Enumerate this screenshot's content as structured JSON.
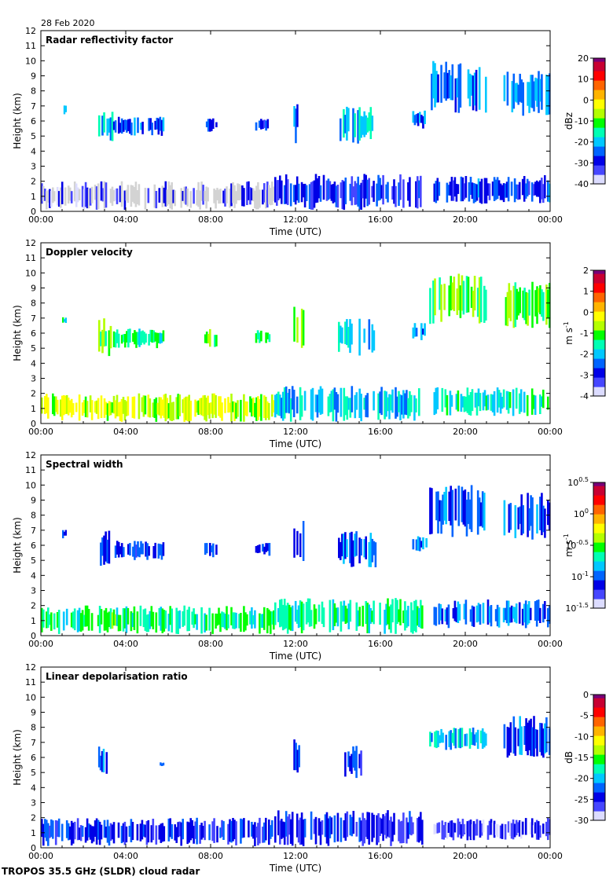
{
  "date": "28 Feb 2020",
  "footer": "TROPOS 35.5 GHz (SLDR) cloud radar",
  "colors": {
    "light": "#d3d3d3",
    "jet": [
      "#dcdcff",
      "#4646ff",
      "#0000e6",
      "#0064ff",
      "#00c8ff",
      "#00ffb4",
      "#00ff00",
      "#b4ff00",
      "#ffff00",
      "#ffb400",
      "#ff6400",
      "#ff0000",
      "#c80032",
      "#780078"
    ]
  },
  "chart_data": [
    {
      "type": "heatmap",
      "title": "Radar reflectivity factor",
      "xlabel": "Time (UTC)",
      "ylabel": "Height (km)",
      "xlim": [
        0,
        24
      ],
      "ylim": [
        0,
        12
      ],
      "xticks": [
        "00:00",
        "04:00",
        "08:00",
        "12:00",
        "16:00",
        "20:00",
        "00:00"
      ],
      "yticks": [
        "0",
        "1",
        "2",
        "3",
        "4",
        "5",
        "6",
        "7",
        "8",
        "9",
        "10",
        "11",
        "12"
      ],
      "colorbar": {
        "label": "dBz",
        "min": -40,
        "max": 20,
        "ticks": [
          "20",
          "10",
          "0",
          "-10",
          "-20",
          "-30",
          "-40"
        ]
      },
      "features": [
        {
          "t0": 1.0,
          "t1": 1.2,
          "h0": 6.4,
          "h1": 7.1,
          "v": 0.3
        },
        {
          "t0": 2.7,
          "t1": 3.4,
          "h0": 4.4,
          "h1": 7.0,
          "v": 0.35
        },
        {
          "t0": 3.4,
          "t1": 5.8,
          "h0": 5.0,
          "h1": 6.3,
          "v": 0.25
        },
        {
          "t0": 7.7,
          "t1": 8.3,
          "h0": 5.2,
          "h1": 6.3,
          "v": 0.2
        },
        {
          "t0": 10.1,
          "t1": 10.8,
          "h0": 5.3,
          "h1": 6.2,
          "v": 0.22
        },
        {
          "t0": 11.9,
          "t1": 12.4,
          "h0": 4.5,
          "h1": 8.0,
          "v": 0.25
        },
        {
          "t0": 14.0,
          "t1": 15.8,
          "h0": 4.5,
          "h1": 7.0,
          "v": 0.32
        },
        {
          "t0": 17.5,
          "t1": 18.2,
          "h0": 5.5,
          "h1": 6.7,
          "v": 0.28
        },
        {
          "t0": 18.3,
          "t1": 21.0,
          "h0": 6.5,
          "h1": 10.0,
          "v": 0.3
        },
        {
          "t0": 21.8,
          "t1": 24.0,
          "h0": 6.3,
          "h1": 9.5,
          "v": 0.3
        },
        {
          "t0": 0.0,
          "t1": 11.0,
          "h0": 0.1,
          "h1": 2.0,
          "v": 0.12
        },
        {
          "t0": 11.0,
          "t1": 18.0,
          "h0": 0.1,
          "h1": 2.5,
          "v": 0.2
        },
        {
          "t0": 18.5,
          "t1": 24.0,
          "h0": 0.5,
          "h1": 2.4,
          "v": 0.22
        }
      ]
    },
    {
      "type": "heatmap",
      "title": "Doppler velocity",
      "xlabel": "Time (UTC)",
      "ylabel": "Height (km)",
      "xlim": [
        0,
        24
      ],
      "ylim": [
        0,
        12
      ],
      "xticks": [
        "00:00",
        "04:00",
        "08:00",
        "12:00",
        "16:00",
        "20:00",
        "00:00"
      ],
      "yticks": [
        "0",
        "1",
        "2",
        "3",
        "4",
        "5",
        "6",
        "7",
        "8",
        "9",
        "10",
        "11",
        "12"
      ],
      "colorbar": {
        "label": "m s",
        "label_sup": "-1",
        "min": -4,
        "max": 2,
        "ticks": [
          "2",
          "1",
          "0",
          "-1",
          "-2",
          "-3",
          "-4"
        ]
      },
      "features": [
        {
          "t0": 1.0,
          "t1": 1.2,
          "h0": 6.6,
          "h1": 7.1,
          "v": 0.45
        },
        {
          "t0": 2.7,
          "t1": 3.4,
          "h0": 4.4,
          "h1": 7.0,
          "v": 0.5
        },
        {
          "t0": 3.4,
          "t1": 5.8,
          "h0": 5.0,
          "h1": 6.3,
          "v": 0.45
        },
        {
          "t0": 7.7,
          "t1": 8.3,
          "h0": 5.0,
          "h1": 6.3,
          "v": 0.48
        },
        {
          "t0": 10.1,
          "t1": 10.8,
          "h0": 5.3,
          "h1": 6.2,
          "v": 0.45
        },
        {
          "t0": 11.9,
          "t1": 12.4,
          "h0": 4.5,
          "h1": 8.0,
          "v": 0.55
        },
        {
          "t0": 14.0,
          "t1": 15.8,
          "h0": 4.5,
          "h1": 7.0,
          "v": 0.35
        },
        {
          "t0": 17.5,
          "t1": 18.2,
          "h0": 5.5,
          "h1": 6.7,
          "v": 0.3
        },
        {
          "t0": 18.3,
          "t1": 21.0,
          "h0": 6.5,
          "h1": 10.0,
          "v": 0.5
        },
        {
          "t0": 21.8,
          "t1": 24.0,
          "h0": 6.3,
          "h1": 9.5,
          "v": 0.52
        },
        {
          "t0": 0.0,
          "t1": 11.0,
          "h0": 0.1,
          "h1": 2.0,
          "v": 0.6
        },
        {
          "t0": 11.0,
          "t1": 18.0,
          "h0": 0.1,
          "h1": 2.5,
          "v": 0.35
        },
        {
          "t0": 18.5,
          "t1": 24.0,
          "h0": 0.5,
          "h1": 2.4,
          "v": 0.4
        }
      ]
    },
    {
      "type": "heatmap",
      "title": "Spectral width",
      "xlabel": "Time (UTC)",
      "ylabel": "Height (km)",
      "xlim": [
        0,
        24
      ],
      "ylim": [
        0,
        12
      ],
      "xticks": [
        "00:00",
        "04:00",
        "08:00",
        "12:00",
        "16:00",
        "20:00",
        "00:00"
      ],
      "yticks": [
        "0",
        "1",
        "2",
        "3",
        "4",
        "5",
        "6",
        "7",
        "8",
        "9",
        "10",
        "11",
        "12"
      ],
      "colorbar": {
        "label": "m s",
        "label_sup": "-1",
        "scale": "log",
        "min_exponent": -1.5,
        "max_exponent": 0.5,
        "tick_base": "10",
        "ticks": [
          "0.5",
          "0",
          "-0.5",
          "-1",
          "-1.5"
        ]
      },
      "features": [
        {
          "t0": 1.0,
          "t1": 1.2,
          "h0": 6.4,
          "h1": 7.1,
          "v": 0.2
        },
        {
          "t0": 2.7,
          "t1": 3.4,
          "h0": 4.4,
          "h1": 7.0,
          "v": 0.25
        },
        {
          "t0": 3.4,
          "t1": 5.8,
          "h0": 5.0,
          "h1": 6.3,
          "v": 0.22
        },
        {
          "t0": 7.7,
          "t1": 8.3,
          "h0": 5.2,
          "h1": 6.3,
          "v": 0.2
        },
        {
          "t0": 10.1,
          "t1": 10.8,
          "h0": 5.3,
          "h1": 6.2,
          "v": 0.2
        },
        {
          "t0": 11.9,
          "t1": 12.4,
          "h0": 4.5,
          "h1": 8.0,
          "v": 0.22
        },
        {
          "t0": 14.0,
          "t1": 15.8,
          "h0": 4.5,
          "h1": 7.0,
          "v": 0.28
        },
        {
          "t0": 17.5,
          "t1": 18.2,
          "h0": 5.5,
          "h1": 6.7,
          "v": 0.3
        },
        {
          "t0": 18.3,
          "t1": 21.0,
          "h0": 6.5,
          "h1": 10.0,
          "v": 0.25
        },
        {
          "t0": 21.8,
          "t1": 24.0,
          "h0": 6.3,
          "h1": 9.5,
          "v": 0.25
        },
        {
          "t0": 0.0,
          "t1": 11.0,
          "h0": 0.1,
          "h1": 2.0,
          "v": 0.45
        },
        {
          "t0": 11.0,
          "t1": 18.0,
          "h0": 0.1,
          "h1": 2.5,
          "v": 0.42
        },
        {
          "t0": 18.5,
          "t1": 24.0,
          "h0": 0.5,
          "h1": 2.4,
          "v": 0.28
        }
      ]
    },
    {
      "type": "heatmap",
      "title": "Linear depolarisation ratio",
      "xlabel": "Time (UTC)",
      "ylabel": "Height (km)",
      "xlim": [
        0,
        24
      ],
      "ylim": [
        0,
        12
      ],
      "xticks": [
        "00:00",
        "04:00",
        "08:00",
        "12:00",
        "16:00",
        "20:00",
        "00:00"
      ],
      "yticks": [
        "0",
        "1",
        "2",
        "3",
        "4",
        "5",
        "6",
        "7",
        "8",
        "9",
        "10",
        "11",
        "12"
      ],
      "colorbar": {
        "label": "dB",
        "min": -30,
        "max": 0,
        "ticks": [
          "0",
          "-5",
          "-10",
          "-15",
          "-20",
          "-25",
          "-30"
        ]
      },
      "features": [
        {
          "t0": 2.7,
          "t1": 3.2,
          "h0": 4.8,
          "h1": 6.8,
          "v": 0.25
        },
        {
          "t0": 5.6,
          "t1": 5.8,
          "h0": 5.4,
          "h1": 5.7,
          "v": 0.3
        },
        {
          "t0": 11.9,
          "t1": 12.2,
          "h0": 4.8,
          "h1": 7.2,
          "v": 0.22
        },
        {
          "t0": 14.3,
          "t1": 15.2,
          "h0": 4.6,
          "h1": 6.8,
          "v": 0.22
        },
        {
          "t0": 18.3,
          "t1": 21.0,
          "h0": 6.5,
          "h1": 8.0,
          "v": 0.35
        },
        {
          "t0": 21.8,
          "t1": 24.0,
          "h0": 5.8,
          "h1": 8.8,
          "v": 0.25
        },
        {
          "t0": 0.0,
          "t1": 11.0,
          "h0": 0.1,
          "h1": 2.0,
          "v": 0.2
        },
        {
          "t0": 11.0,
          "t1": 18.0,
          "h0": 0.1,
          "h1": 2.5,
          "v": 0.18
        },
        {
          "t0": 18.5,
          "t1": 24.0,
          "h0": 0.5,
          "h1": 2.0,
          "v": 0.12
        }
      ]
    }
  ]
}
